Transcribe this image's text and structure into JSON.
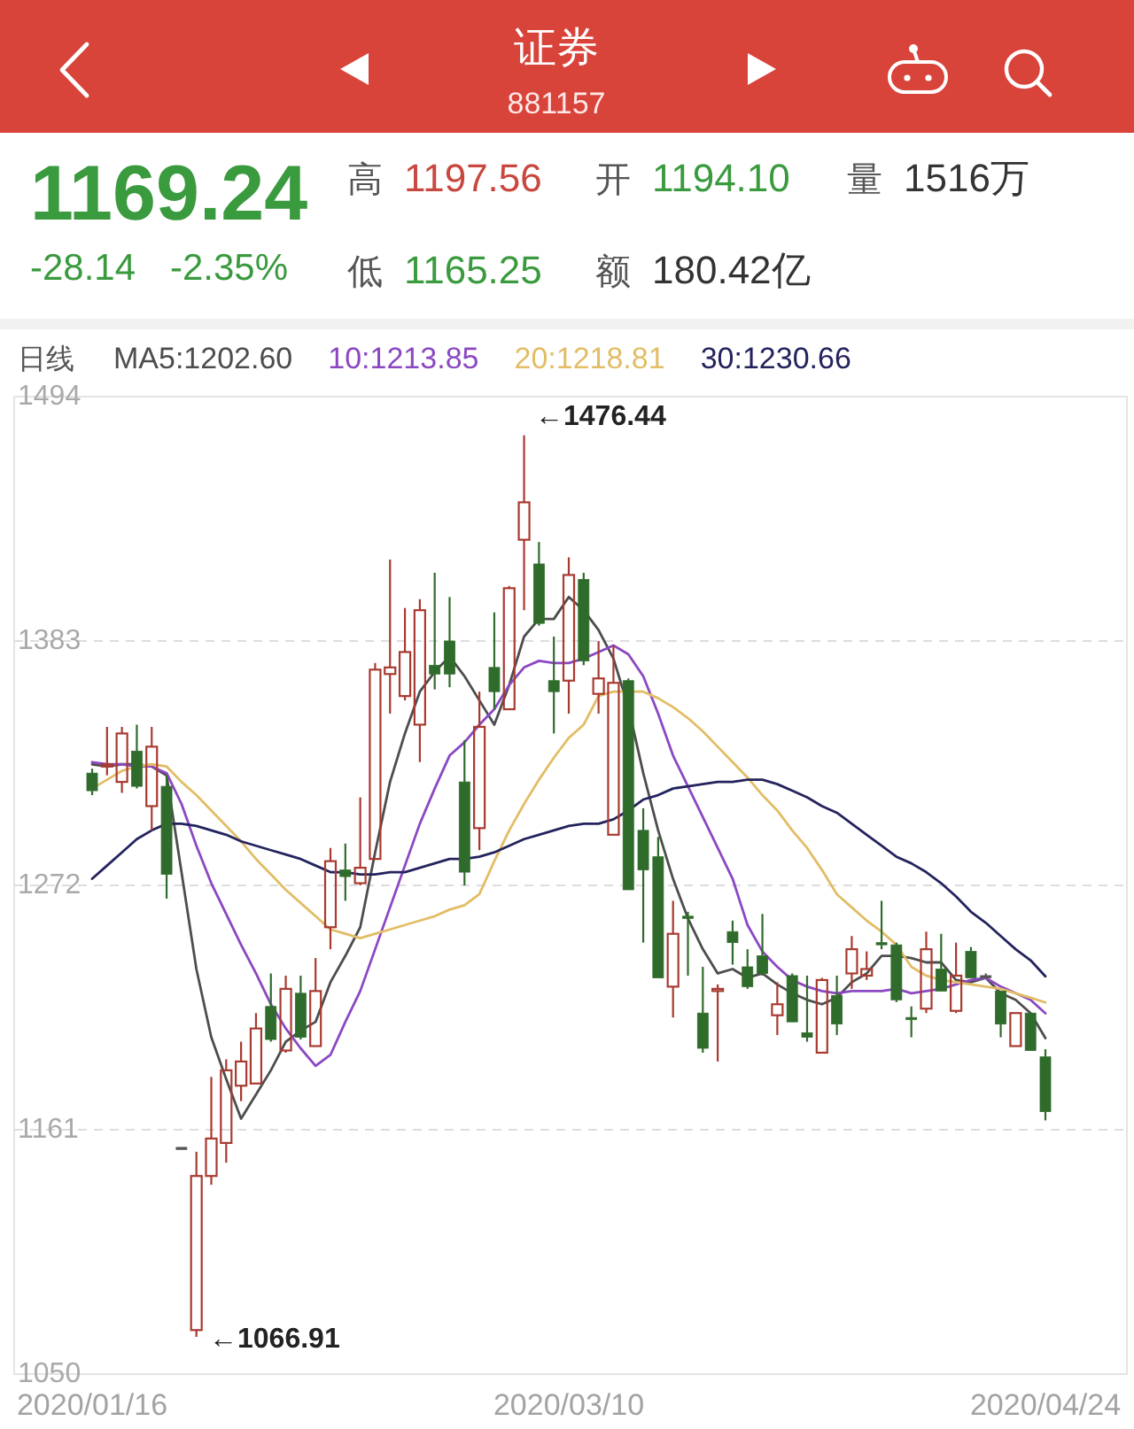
{
  "chart_data": {
    "type": "candlestick",
    "title": "证券",
    "subtitle": "881157",
    "legend_title": "日线",
    "legend": "top",
    "grid": "y",
    "categories": [
      "2020/01/16",
      null,
      null,
      null,
      null,
      null,
      null,
      null,
      null,
      null,
      null,
      null,
      null,
      null,
      null,
      null,
      null,
      null,
      null,
      null,
      null,
      null,
      null,
      null,
      null,
      null,
      null,
      null,
      null,
      null,
      null,
      null,
      "2020/03/10",
      null,
      null,
      null,
      null,
      null,
      null,
      null,
      null,
      null,
      null,
      null,
      null,
      null,
      null,
      null,
      null,
      null,
      null,
      null,
      null,
      null,
      null,
      null,
      null,
      null,
      null,
      null,
      null,
      null,
      null,
      null,
      "2020/04/24"
    ],
    "ylim": [
      1050,
      1494
    ],
    "yticks": [
      1050,
      1161,
      1272,
      1383,
      1494
    ],
    "ohlc": [
      [
        1323,
        1325,
        1313,
        1315
      ],
      [
        1326,
        1344,
        1322,
        1327
      ],
      [
        1319,
        1344,
        1314,
        1341
      ],
      [
        1333,
        1345,
        1316,
        1317
      ],
      [
        1308,
        1344,
        1297,
        1335
      ],
      [
        1317,
        1322,
        1266,
        1277
      ],
      [
        1153,
        1153,
        1153,
        1153
      ],
      [
        1070,
        1151,
        1066.91,
        1140
      ],
      [
        1140,
        1185,
        1136,
        1157
      ],
      [
        1155,
        1193,
        1146,
        1188
      ],
      [
        1181,
        1201,
        1174,
        1192
      ],
      [
        1182,
        1214,
        1182,
        1207
      ],
      [
        1217,
        1232,
        1201,
        1202
      ],
      [
        1197,
        1231,
        1196,
        1225
      ],
      [
        1223,
        1231,
        1202,
        1203
      ],
      [
        1199,
        1239,
        1199,
        1224
      ],
      [
        1253,
        1289,
        1243,
        1283
      ],
      [
        1279,
        1291,
        1265,
        1276
      ],
      [
        1273,
        1312,
        1272,
        1280
      ],
      [
        1284,
        1373,
        1284,
        1370
      ],
      [
        1368,
        1420,
        1350,
        1371
      ],
      [
        1358,
        1398,
        1356,
        1378
      ],
      [
        1345,
        1402,
        1328,
        1397
      ],
      [
        1372,
        1414,
        1361,
        1368
      ],
      [
        1383,
        1403,
        1362,
        1368
      ],
      [
        1319,
        1338,
        1272,
        1278
      ],
      [
        1298,
        1360,
        1288,
        1344
      ],
      [
        1371,
        1396,
        1352,
        1360
      ],
      [
        1352,
        1408,
        1352,
        1407
      ],
      [
        1429,
        1476.44,
        1397,
        1446
      ],
      [
        1418,
        1428,
        1390,
        1391
      ],
      [
        1365,
        1385,
        1341,
        1360
      ],
      [
        1365,
        1421,
        1350,
        1413
      ],
      [
        1411,
        1414,
        1372,
        1374
      ],
      [
        1359,
        1383,
        1350,
        1366
      ],
      [
        1295,
        1381,
        1295,
        1364
      ],
      [
        1365,
        1366,
        1270,
        1270
      ],
      [
        1297,
        1307,
        1246,
        1279
      ],
      [
        1285,
        1294,
        1230,
        1230
      ],
      [
        1226,
        1265,
        1212,
        1250
      ],
      [
        1258,
        1260,
        1231,
        1257
      ],
      [
        1214,
        1235,
        1196,
        1198
      ],
      [
        1224,
        1227,
        1192,
        1225
      ],
      [
        1251,
        1256,
        1236,
        1246
      ],
      [
        1235,
        1243,
        1225,
        1226
      ],
      [
        1240,
        1259,
        1231,
        1232
      ],
      [
        1213,
        1228,
        1204,
        1218
      ],
      [
        1231,
        1232,
        1210,
        1210
      ],
      [
        1205,
        1231,
        1201,
        1203
      ],
      [
        1196,
        1230,
        1196,
        1229
      ],
      [
        1222,
        1231,
        1204,
        1209
      ],
      [
        1232,
        1249,
        1225,
        1243
      ],
      [
        1231,
        1242,
        1229,
        1234
      ],
      [
        1246,
        1265,
        1243,
        1245
      ],
      [
        1245,
        1246,
        1219,
        1220
      ],
      [
        1212,
        1217,
        1203,
        1211
      ],
      [
        1216,
        1251,
        1214,
        1243
      ],
      [
        1234,
        1250,
        1224,
        1224
      ],
      [
        1215,
        1246,
        1214,
        1231
      ],
      [
        1242,
        1244,
        1230,
        1230
      ],
      [
        1231,
        1232,
        1230,
        1231
      ],
      [
        1224,
        1224,
        1203,
        1209
      ],
      [
        1199,
        1214,
        1199,
        1214
      ],
      [
        1214,
        1214,
        1197,
        1197
      ],
      [
        1194.1,
        1197.56,
        1165.25,
        1169.24
      ]
    ],
    "colors": [
      "#2f6b2b",
      "#a83a30",
      "#a83a30",
      "#2f6b2b",
      "#a83a30",
      "#2f6b2b",
      "#555555",
      "#a83a30",
      "#a83a30",
      "#a83a30",
      "#a83a30",
      "#a83a30",
      "#2f6b2b",
      "#a83a30",
      "#2f6b2b",
      "#a83a30",
      "#a83a30",
      "#2f6b2b",
      "#a83a30",
      "#a83a30",
      "#a83a30",
      "#a83a30",
      "#a83a30",
      "#2f6b2b",
      "#2f6b2b",
      "#2f6b2b",
      "#a83a30",
      "#2f6b2b",
      "#a83a30",
      "#a83a30",
      "#2f6b2b",
      "#2f6b2b",
      "#a83a30",
      "#2f6b2b",
      "#a83a30",
      "#a83a30",
      "#2f6b2b",
      "#2f6b2b",
      "#2f6b2b",
      "#a83a30",
      "#2f6b2b",
      "#2f6b2b",
      "#a83a30",
      "#2f6b2b",
      "#2f6b2b",
      "#2f6b2b",
      "#a83a30",
      "#2f6b2b",
      "#2f6b2b",
      "#a83a30",
      "#2f6b2b",
      "#a83a30",
      "#a83a30",
      "#2f6b2b",
      "#2f6b2b",
      "#2f6b2b",
      "#a83a30",
      "#2f6b2b",
      "#a83a30",
      "#2f6b2b",
      "#555555",
      "#2f6b2b",
      "#a83a30",
      "#2f6b2b",
      "#2f6b2b"
    ],
    "series": [
      {
        "name": "MA5:1202.60",
        "type": "line",
        "color": "#4d4d4d",
        "values": [
          1327,
          1326,
          1327,
          1327,
          1326,
          1322,
          1278,
          1234,
          1203,
          1184,
          1166,
          1177,
          1188,
          1201,
          1206,
          1210,
          1228,
          1240,
          1253,
          1287,
          1319,
          1341,
          1360,
          1369,
          1376,
          1367,
          1356,
          1345,
          1363,
          1385,
          1393,
          1393,
          1403,
          1397,
          1388,
          1375,
          1353,
          1323,
          1297,
          1275,
          1257,
          1243,
          1232,
          1234,
          1230,
          1232,
          1227,
          1223,
          1220,
          1218,
          1221,
          1228,
          1232,
          1240,
          1240,
          1239,
          1237,
          1237,
          1229,
          1228,
          1230,
          1223,
          1220,
          1214,
          1202.6
        ]
      },
      {
        "name": "10:1213.85",
        "type": "line",
        "color": "#8b48c2",
        "values": [
          1328,
          1327,
          1327,
          1326,
          1326,
          1323,
          1309,
          1290,
          1273,
          1259,
          1245,
          1232,
          1218,
          1207,
          1198,
          1190,
          1195,
          1210,
          1224,
          1243,
          1262,
          1281,
          1300,
          1316,
          1331,
          1337,
          1345,
          1352,
          1363,
          1371,
          1374,
          1373,
          1373,
          1375,
          1378,
          1381,
          1377,
          1367,
          1350,
          1331,
          1317,
          1303,
          1289,
          1275,
          1254,
          1242,
          1235,
          1229,
          1226,
          1224,
          1223,
          1224,
          1224,
          1224,
          1225,
          1223,
          1224,
          1225,
          1227,
          1229,
          1230,
          1226,
          1223,
          1220,
          1213.85
        ]
      },
      {
        "name": "20:1218.81",
        "type": "line",
        "color": "#e2bd66",
        "values": [
          1316,
          1320,
          1324,
          1326,
          1327,
          1326,
          1319,
          1313,
          1306,
          1299,
          1292,
          1284,
          1277,
          1270,
          1264,
          1258,
          1252,
          1250,
          1248,
          1250,
          1252,
          1254,
          1256,
          1258,
          1261,
          1263,
          1268,
          1283,
          1297,
          1309,
          1320,
          1330,
          1339,
          1345,
          1358,
          1360,
          1360,
          1360,
          1357,
          1353,
          1348,
          1342,
          1335,
          1328,
          1321,
          1313,
          1306,
          1297,
          1289,
          1279,
          1268,
          1262,
          1256,
          1251,
          1245,
          1235,
          1231,
          1229,
          1228,
          1227,
          1226,
          1225,
          1223,
          1221,
          1218.81
        ]
      },
      {
        "name": "30:1230.66",
        "type": "line",
        "color": "#23235e",
        "values": [
          1275,
          1281,
          1287,
          1293,
          1297,
          1300,
          1300,
          1299,
          1297,
          1295,
          1292,
          1290,
          1288,
          1286,
          1284,
          1281,
          1278,
          1278,
          1277,
          1277,
          1278,
          1278,
          1280,
          1282,
          1284,
          1284,
          1285,
          1287,
          1290,
          1293,
          1295,
          1297,
          1299,
          1300,
          1300,
          1302,
          1306,
          1311,
          1313,
          1316,
          1317,
          1318,
          1319,
          1319,
          1320,
          1320,
          1318,
          1315,
          1312,
          1308,
          1305,
          1300,
          1295,
          1290,
          1285,
          1282,
          1278,
          1273,
          1267,
          1260,
          1255,
          1249,
          1243,
          1238,
          1230.66
        ]
      }
    ],
    "annotations": [
      "1169.24",
      "-28.14",
      "-2.35%",
      "高",
      "1197.56",
      "开",
      "1194.10",
      "量",
      "1516万",
      "低",
      "1165.25",
      "额",
      "180.42亿",
      "←1476.44",
      "←1066.91"
    ]
  }
}
